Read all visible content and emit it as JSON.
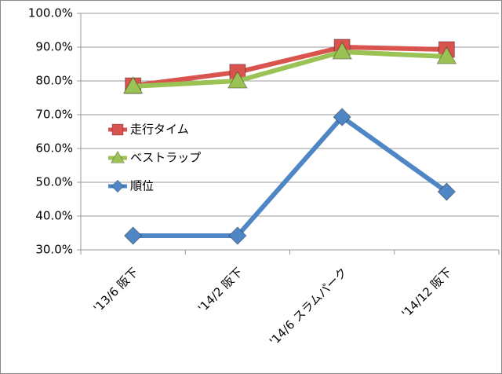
{
  "chart_data": {
    "type": "line",
    "categories": [
      "'13/6 阪下",
      "'14/2 阪下",
      "'14/6 スラムパーク",
      "'14/12 阪下"
    ],
    "series": [
      {
        "name": "走行タイム",
        "color": "#d9534f",
        "marker": "square",
        "values": [
          78.6,
          82.6,
          90,
          89.3
        ]
      },
      {
        "name": "ベストラップ",
        "color": "#9bc255",
        "marker": "triangle",
        "values": [
          78.4,
          80,
          88.6,
          87.2
        ]
      },
      {
        "name": "順位",
        "color": "#4f86c6",
        "marker": "diamond",
        "values": [
          34.2,
          34.2,
          69.3,
          47.2
        ]
      }
    ],
    "ylim": [
      30,
      100
    ],
    "yticks": [
      {
        "value": 30,
        "label": "30.0%"
      },
      {
        "value": 40,
        "label": "40.0%"
      },
      {
        "value": 50,
        "label": "50.0%"
      },
      {
        "value": 60,
        "label": "60.0%"
      },
      {
        "value": 70,
        "label": "70.0%"
      },
      {
        "value": 80,
        "label": "80.0%"
      },
      {
        "value": 90,
        "label": "90.0%"
      },
      {
        "value": 100,
        "label": "100.0%"
      }
    ],
    "grid": true
  }
}
